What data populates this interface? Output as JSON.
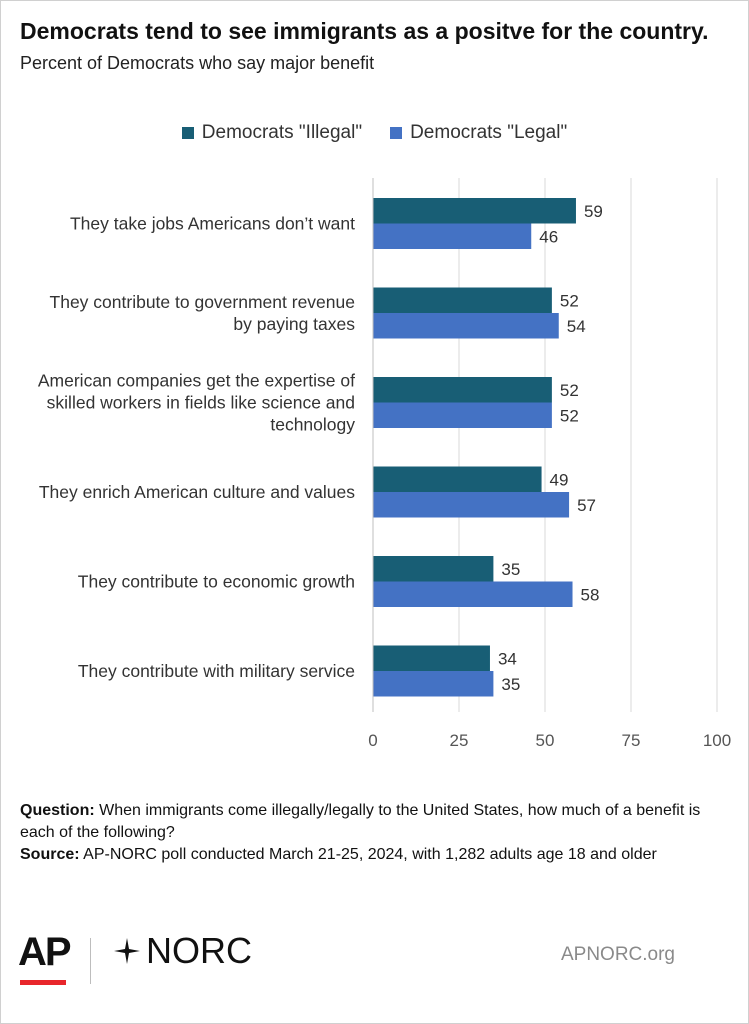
{
  "header": {
    "title": "Democrats tend to see immigrants as a positve for the country.",
    "subtitle": "Percent of Democrats who say major benefit"
  },
  "colors": {
    "illegal": "#185e75",
    "legal": "#4472c4",
    "grid": "#d9d9d9",
    "axis_text": "#555555",
    "accent_red": "#e8262b"
  },
  "chart_data": {
    "type": "bar",
    "orientation": "horizontal",
    "categories": [
      "They take jobs Americans don’t want",
      "They contribute to government revenue by paying taxes",
      "American companies get the expertise of skilled workers in fields like science and technology",
      "They enrich American culture and values",
      "They contribute to economic growth",
      "They contribute with military service"
    ],
    "category_lines": [
      [
        "They take jobs Americans don’t want"
      ],
      [
        "They contribute to government revenue",
        "by paying taxes"
      ],
      [
        "American companies get the expertise of",
        "skilled workers in fields like science and",
        "technology"
      ],
      [
        "They enrich American culture and values"
      ],
      [
        "They contribute to economic growth"
      ],
      [
        "They contribute with military service"
      ]
    ],
    "series": [
      {
        "name": "Democrats \"Illegal\"",
        "values": [
          59,
          52,
          52,
          49,
          35,
          34
        ]
      },
      {
        "name": "Democrats \"Legal\"",
        "values": [
          46,
          54,
          52,
          57,
          58,
          35
        ]
      }
    ],
    "xlim": [
      0,
      100
    ],
    "xticks": [
      0,
      25,
      50,
      75,
      100
    ],
    "grid": true,
    "legend_position": "top-center",
    "data_labels": true
  },
  "footer": {
    "question_label": "Question:",
    "question_text": " When immigrants come illegally/legally to the United States, how much of a benefit is each of the following?",
    "source_label": "Source:",
    "source_text": " AP-NORC poll conducted March 21-25, 2024, with 1,282 adults age 18 and older"
  },
  "branding": {
    "ap_logo": "AP",
    "norc_logo": "NORC",
    "norc_mark_icon": "sparkle-star-icon",
    "url": "APNORC.org"
  }
}
